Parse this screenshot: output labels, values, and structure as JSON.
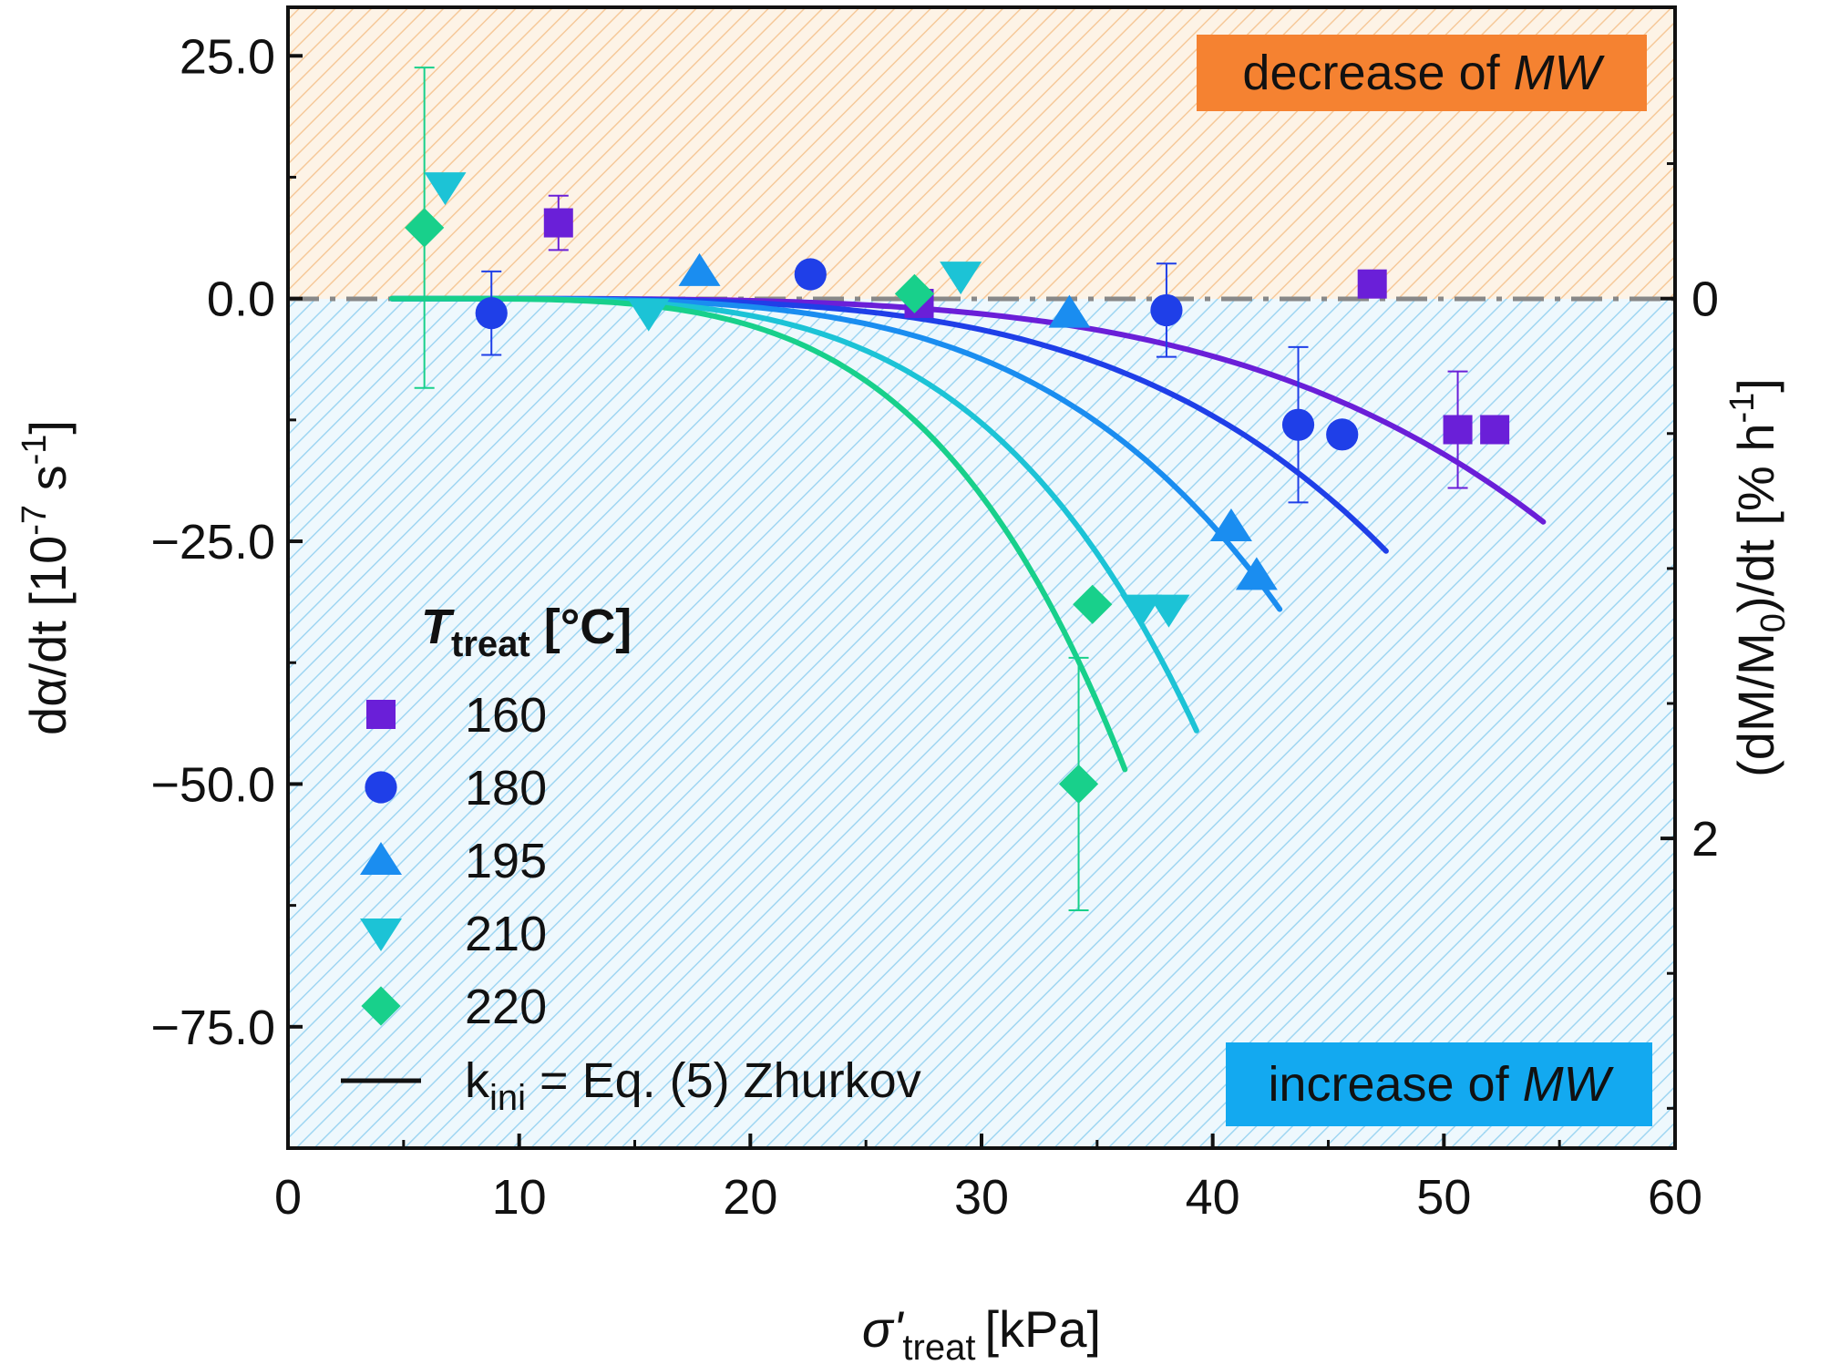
{
  "chart_data": {
    "type": "scatter",
    "xlabel_symbol": "σ'",
    "xlabel_sub": "treat",
    "xlabel_unit": "[kPa]",
    "ylabel_left_main": "dα/dt [10",
    "ylabel_left_exp": "-7",
    "ylabel_left_unit": " s",
    "ylabel_left_exp2": "-1",
    "ylabel_left_close": "]",
    "ylabel_right_main": "(dM/M",
    "ylabel_right_sub": "0",
    "ylabel_right_mid": ")/dt [% h",
    "ylabel_right_exp": "-1",
    "ylabel_right_close": "]",
    "xlim": [
      0,
      60
    ],
    "ylim": [
      -87.5,
      30
    ],
    "x_ticks": [
      0,
      10,
      20,
      30,
      40,
      50,
      60
    ],
    "x_tick_labels": [
      "0",
      "10",
      "20",
      "30",
      "40",
      "50",
      "60"
    ],
    "y_ticks": [
      25,
      0,
      -25,
      -50,
      -75
    ],
    "y_tick_labels": [
      "25.0",
      "0.0",
      "−25.0",
      "−50.0",
      "−75.0"
    ],
    "right_ticks": [
      0,
      2
    ],
    "right_tick_labels": [
      "0",
      "2"
    ],
    "right_axis_factor": -27.8,
    "regions": {
      "top_label_pre": "decrease of ",
      "top_label_em": "MW",
      "top_color": "#f58231",
      "bottom_label_pre": "increase of ",
      "bottom_label_em": "MW",
      "bottom_color": "#13a9f0"
    },
    "legend": {
      "title_symbol": "T",
      "title_sub": "treat",
      "title_unit": " [°C]",
      "line_label_pre": "k",
      "line_label_sub": "ini",
      "line_label_post": " = Eq. (5) Zhurkov"
    },
    "series": [
      {
        "name": "160",
        "marker": "square",
        "color": "#6a1fd8",
        "points": [
          {
            "x": 11.7,
            "y": 7.8,
            "err": 2.8
          },
          {
            "x": 27.3,
            "y": -0.5
          },
          {
            "x": 46.9,
            "y": 1.5
          },
          {
            "x": 50.6,
            "y": -13.5,
            "err": 6.0
          },
          {
            "x": 52.2,
            "y": -13.5
          }
        ],
        "fit": {
          "x0": 4.5,
          "x1": 54.3,
          "y_end": -23.0,
          "p": 4
        }
      },
      {
        "name": "180",
        "marker": "circle",
        "color": "#1f3fe8",
        "points": [
          {
            "x": 8.8,
            "y": -1.5,
            "err": 4.3
          },
          {
            "x": 22.6,
            "y": 2.5
          },
          {
            "x": 38.0,
            "y": -1.2,
            "err": 4.8
          },
          {
            "x": 43.7,
            "y": -13.0,
            "err": 8.0
          },
          {
            "x": 45.6,
            "y": -14.0
          }
        ],
        "fit": {
          "x0": 4.5,
          "x1": 47.5,
          "y_end": -26.0,
          "p": 4
        }
      },
      {
        "name": "195",
        "marker": "triangle-up",
        "color": "#1a8df0",
        "points": [
          {
            "x": 17.8,
            "y": 2.8
          },
          {
            "x": 33.8,
            "y": -1.5
          },
          {
            "x": 40.8,
            "y": -23.5
          },
          {
            "x": 41.9,
            "y": -28.5
          }
        ],
        "fit": {
          "x0": 4.5,
          "x1": 42.9,
          "y_end": -32.0,
          "p": 4
        }
      },
      {
        "name": "210",
        "marker": "triangle-down",
        "color": "#1cc3d6",
        "points": [
          {
            "x": 6.8,
            "y": 11.5
          },
          {
            "x": 15.6,
            "y": -1.5
          },
          {
            "x": 29.1,
            "y": 2.3
          },
          {
            "x": 36.9,
            "y": -32.0
          },
          {
            "x": 38.1,
            "y": -32.0
          }
        ],
        "fit": {
          "x0": 4.5,
          "x1": 39.3,
          "y_end": -44.5,
          "p": 4
        }
      },
      {
        "name": "220",
        "marker": "diamond",
        "color": "#18d08b",
        "points": [
          {
            "x": 5.9,
            "y": 7.3,
            "err": 16.5
          },
          {
            "x": 27.1,
            "y": 0.5
          },
          {
            "x": 34.8,
            "y": -31.5
          },
          {
            "x": 34.2,
            "y": -50.0,
            "err": 13.0
          }
        ],
        "fit": {
          "x0": 4.5,
          "x1": 36.2,
          "y_end": -48.5,
          "p": 4
        }
      }
    ]
  }
}
